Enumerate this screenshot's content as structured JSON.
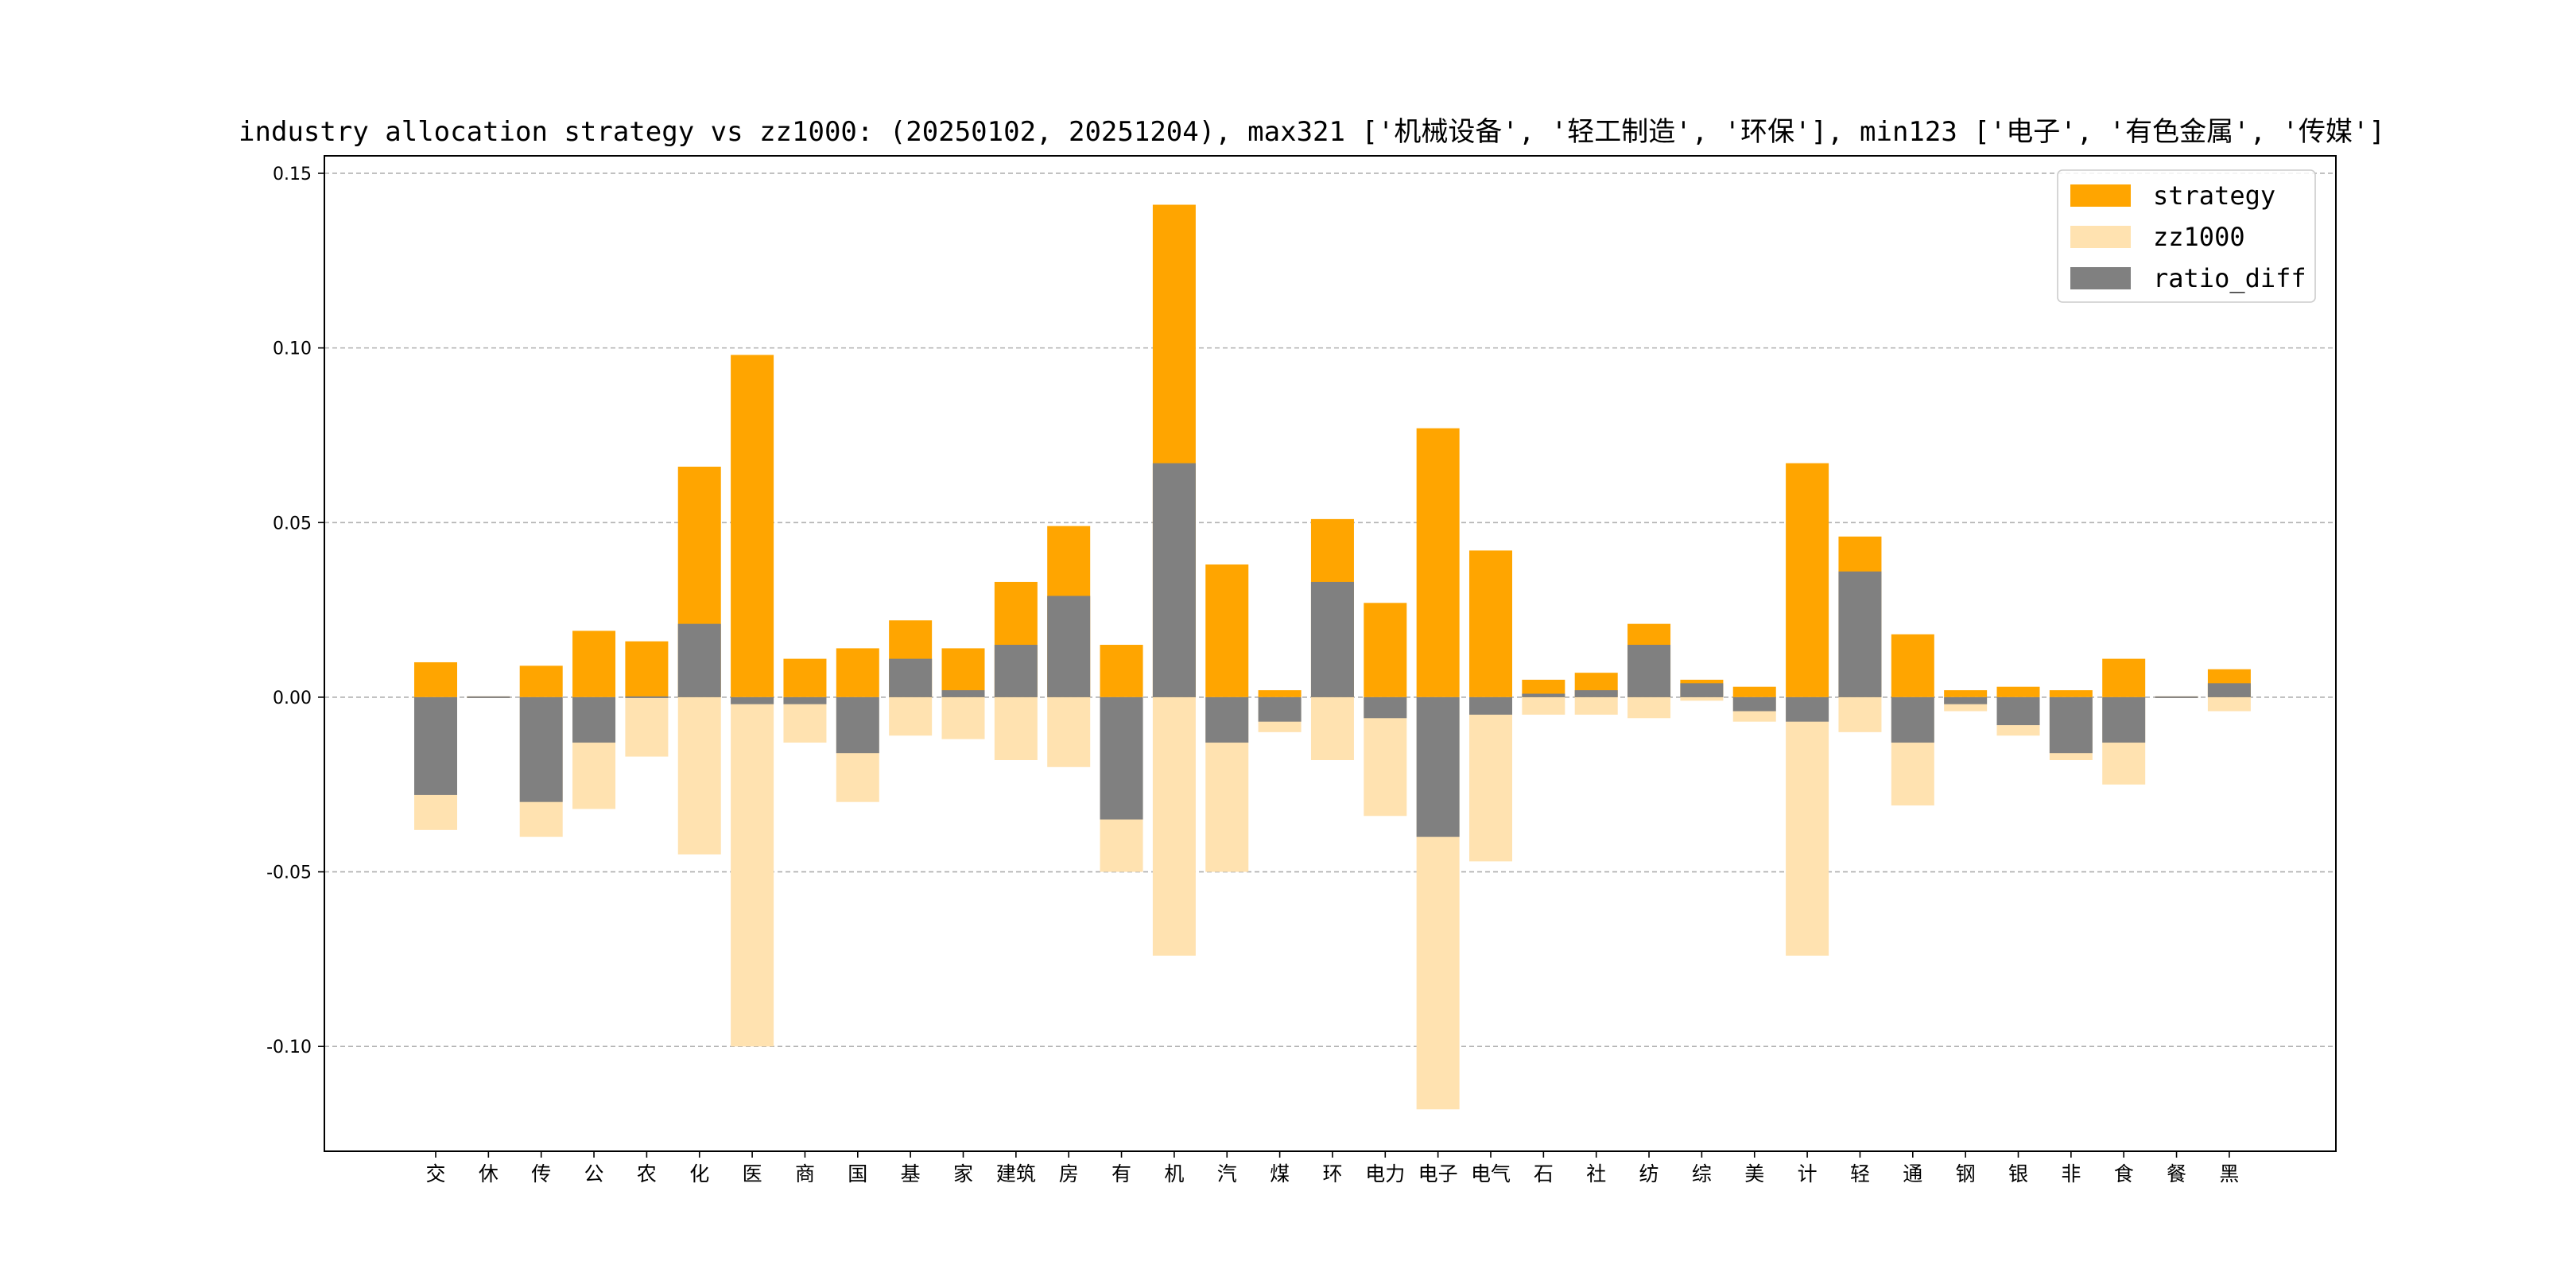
{
  "chart_data": {
    "type": "bar",
    "title": "industry allocation strategy vs zz1000: (20250102, 20251204), max321 ['机械设备', '轻工制造', '环保'], min123 ['电子', '有色金属', '传媒']",
    "xlabel": "",
    "ylabel": "",
    "ylim": [
      -0.13,
      0.155
    ],
    "yticks": [
      -0.1,
      -0.05,
      0.0,
      0.05,
      0.1,
      0.15
    ],
    "ytick_labels": [
      "-0.10",
      "-0.05",
      "0.00",
      "0.05",
      "0.10",
      "0.15"
    ],
    "grid": "y-dashed",
    "legend_position": "top-right",
    "categories": [
      "交",
      "休",
      "传",
      "公",
      "农",
      "化",
      "医",
      "商",
      "国",
      "基",
      "家",
      "建筑",
      "房",
      "有",
      "机",
      "汽",
      "煤",
      "环",
      "电力",
      "电子",
      "电气",
      "石",
      "社",
      "纺",
      "综",
      "美",
      "计",
      "轻",
      "通",
      "钢",
      "银",
      "非",
      "食",
      "餐",
      "黑"
    ],
    "series": [
      {
        "name": "strategy",
        "color": "#ffa500",
        "values": [
          0.01,
          0.0,
          0.009,
          0.019,
          0.016,
          0.066,
          0.098,
          0.011,
          0.014,
          0.022,
          0.014,
          0.033,
          0.049,
          0.015,
          0.141,
          0.038,
          0.002,
          0.051,
          0.027,
          0.077,
          0.042,
          0.005,
          0.007,
          0.021,
          0.005,
          0.003,
          0.067,
          0.046,
          0.018,
          0.002,
          0.003,
          0.002,
          0.011,
          0.0,
          0.008
        ]
      },
      {
        "name": "zz1000",
        "color": "#ffe2b0",
        "values": [
          -0.038,
          0.0,
          -0.04,
          -0.032,
          -0.017,
          -0.045,
          -0.1,
          -0.013,
          -0.03,
          -0.011,
          -0.012,
          -0.018,
          -0.02,
          -0.05,
          -0.074,
          -0.05,
          -0.01,
          -0.018,
          -0.034,
          -0.118,
          -0.047,
          -0.005,
          -0.005,
          -0.006,
          -0.001,
          -0.007,
          -0.074,
          -0.01,
          -0.031,
          -0.004,
          -0.011,
          -0.018,
          -0.025,
          0.0,
          -0.004
        ]
      },
      {
        "name": "ratio_diff",
        "color": "#808080",
        "values": [
          -0.028,
          0.0,
          -0.03,
          -0.013,
          0.0,
          0.021,
          -0.002,
          -0.002,
          -0.016,
          0.011,
          0.002,
          0.015,
          0.029,
          -0.035,
          0.067,
          -0.013,
          -0.007,
          0.033,
          -0.006,
          -0.04,
          -0.005,
          0.001,
          0.002,
          0.015,
          0.004,
          -0.004,
          -0.007,
          0.036,
          -0.013,
          -0.002,
          -0.008,
          -0.016,
          -0.013,
          0.0,
          0.004
        ]
      }
    ]
  }
}
